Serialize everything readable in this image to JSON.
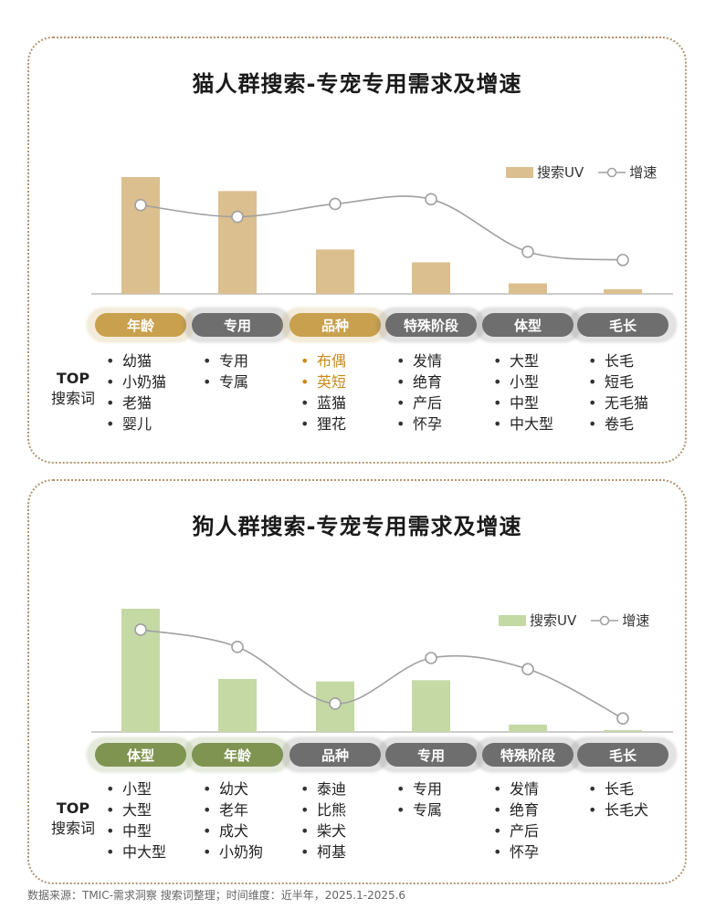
{
  "footer": "数据来源：TMIC-需求洞察 搜索词整理；时间维度：近半年，2025.1-2025.6",
  "colors": {
    "border": "#b39470",
    "cat_bar": "#dcbf8f",
    "dog_bar": "#c5d9a5",
    "line": "#a0a0a0",
    "pill_gold": "#c9a04d",
    "pill_green": "#7f9451",
    "pill_gray": "#6e6e6e",
    "highlight_text": "#c88a1c"
  },
  "cat": {
    "title": "猫人群搜索-专宠专用需求及增速",
    "legend_bar": "搜索UV",
    "legend_line": "增速",
    "top_label_1": "TOP",
    "top_label_2": "搜索词",
    "categories": [
      {
        "label": "年龄",
        "style": "gold",
        "terms": [
          "幼猫",
          "小奶猫",
          "老猫",
          "婴儿"
        ],
        "highlight": []
      },
      {
        "label": "专用",
        "style": "gray",
        "terms": [
          "专用",
          "专属"
        ],
        "highlight": []
      },
      {
        "label": "品种",
        "style": "gold",
        "terms": [
          "布偶",
          "英短",
          "蓝猫",
          "狸花"
        ],
        "highlight": [
          0,
          1
        ]
      },
      {
        "label": "特殊阶段",
        "style": "gray",
        "terms": [
          "发情",
          "绝育",
          "产后",
          "怀孕"
        ],
        "highlight": []
      },
      {
        "label": "体型",
        "style": "gray",
        "terms": [
          "大型",
          "小型",
          "中型",
          "中大型"
        ],
        "highlight": []
      },
      {
        "label": "毛长",
        "style": "gray",
        "terms": [
          "长毛",
          "短毛",
          "无毛猫",
          "卷毛"
        ],
        "highlight": []
      }
    ]
  },
  "dog": {
    "title": "狗人群搜索-专宠专用需求及增速",
    "legend_bar": "搜索UV",
    "legend_line": "增速",
    "top_label_1": "TOP",
    "top_label_2": "搜索词",
    "categories": [
      {
        "label": "体型",
        "style": "green",
        "terms": [
          "小型",
          "大型",
          "中型",
          "中大型"
        ],
        "highlight": []
      },
      {
        "label": "年龄",
        "style": "green",
        "terms": [
          "幼犬",
          "老年",
          "成犬",
          "小奶狗"
        ],
        "highlight": []
      },
      {
        "label": "品种",
        "style": "gray",
        "terms": [
          "泰迪",
          "比熊",
          "柴犬",
          "柯基"
        ],
        "highlight": []
      },
      {
        "label": "专用",
        "style": "gray",
        "terms": [
          "专用",
          "专属"
        ],
        "highlight": []
      },
      {
        "label": "特殊阶段",
        "style": "gray",
        "terms": [
          "发情",
          "绝育",
          "产后",
          "怀孕"
        ],
        "highlight": []
      },
      {
        "label": "毛长",
        "style": "gray",
        "terms": [
          "长毛",
          "长毛犬"
        ],
        "highlight": []
      }
    ]
  },
  "chart_data": [
    {
      "type": "bar",
      "title": "猫人群搜索-专宠专用需求及增速",
      "categories": [
        "年龄",
        "专用",
        "品种",
        "特殊阶段",
        "体型",
        "毛长"
      ],
      "series": [
        {
          "name": "搜索UV",
          "type": "bar",
          "values": [
            100,
            88,
            38,
            27,
            9,
            4
          ]
        },
        {
          "name": "增速",
          "type": "line",
          "values": [
            76,
            66,
            77,
            81,
            36,
            29
          ]
        }
      ],
      "ylim": [
        0,
        100
      ],
      "legend": "top-right",
      "grid": false
    },
    {
      "type": "bar",
      "title": "狗人群搜索-专宠专用需求及增速",
      "categories": [
        "体型",
        "年龄",
        "品种",
        "专用",
        "特殊阶段",
        "毛长"
      ],
      "series": [
        {
          "name": "搜索UV",
          "type": "bar",
          "values": [
            100,
            43,
            41,
            42,
            6,
            1
          ]
        },
        {
          "name": "增速",
          "type": "line",
          "values": [
            83,
            69,
            23,
            60,
            51,
            11
          ]
        }
      ],
      "ylim": [
        0,
        100
      ],
      "legend": "top-right",
      "grid": false
    }
  ]
}
